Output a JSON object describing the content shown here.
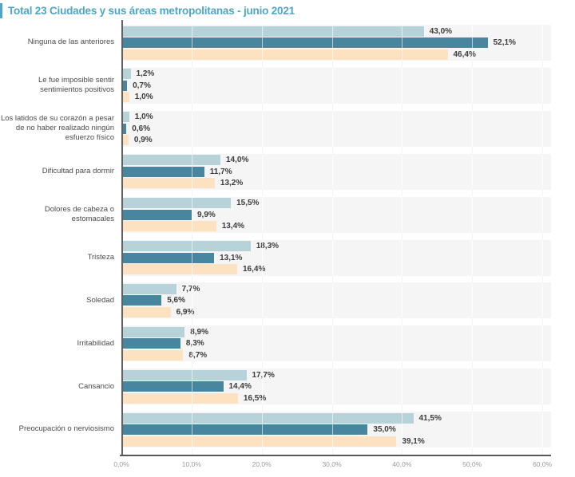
{
  "header": {
    "title": "Total 23 Ciudades y sus áreas metropolitanas - junio 2021",
    "title_color": "#4fa5c5",
    "accent_color": "#4fa5c5"
  },
  "chart_data": {
    "type": "bar",
    "orientation": "horizontal",
    "title": "Total 23 Ciudades y sus áreas metropolitanas - junio 2021",
    "categories": [
      "Ninguna de las anteriores",
      "Le fue imposible sentir sentimientos positivos",
      "Los latidos de su corazón a pesar de no haber realizado ningún esfuerzo físico",
      "Dificultad para dormir",
      "Dolores de cabeza o estomacales",
      "Tristeza",
      "Soledad",
      "Irritabilidad",
      "Cansancio",
      "Preocupación o nerviosismo"
    ],
    "series": [
      {
        "name": "light-blue-series",
        "color": "#b8d2da",
        "values": [
          43.0,
          1.2,
          1.0,
          14.0,
          15.5,
          18.3,
          7.7,
          8.9,
          17.7,
          41.5
        ],
        "labels": [
          "43,0%",
          "1,2%",
          "1,0%",
          "14,0%",
          "15,5%",
          "18,3%",
          "7,7%",
          "8,9%",
          "17,7%",
          "41,5%"
        ]
      },
      {
        "name": "dark-teal-series",
        "color": "#4886a0",
        "values": [
          52.1,
          0.7,
          0.6,
          11.7,
          9.9,
          13.1,
          5.6,
          8.3,
          14.4,
          35.0
        ],
        "labels": [
          "52,1%",
          "0,7%",
          "0,6%",
          "11,7%",
          "9,9%",
          "13,1%",
          "5,6%",
          "8,3%",
          "14,4%",
          "35,0%"
        ]
      },
      {
        "name": "peach-series",
        "color": "#fce2c0",
        "values": [
          46.4,
          1.0,
          0.9,
          13.2,
          13.4,
          16.4,
          6.9,
          8.7,
          16.5,
          39.1
        ],
        "labels": [
          "46,4%",
          "1,0%",
          "0,9%",
          "13,2%",
          "13,4%",
          "16,4%",
          "6,9%",
          "8,7%",
          "16,5%",
          "39,1%"
        ]
      }
    ],
    "xlim": [
      0,
      60
    ],
    "x_ticks": [
      "0,0%",
      "10,0%",
      "20,0%",
      "30,0%",
      "40,0%",
      "50,0%",
      "60,0%"
    ],
    "grid": true,
    "legend": "none",
    "band_color": "#f5f5f5"
  }
}
